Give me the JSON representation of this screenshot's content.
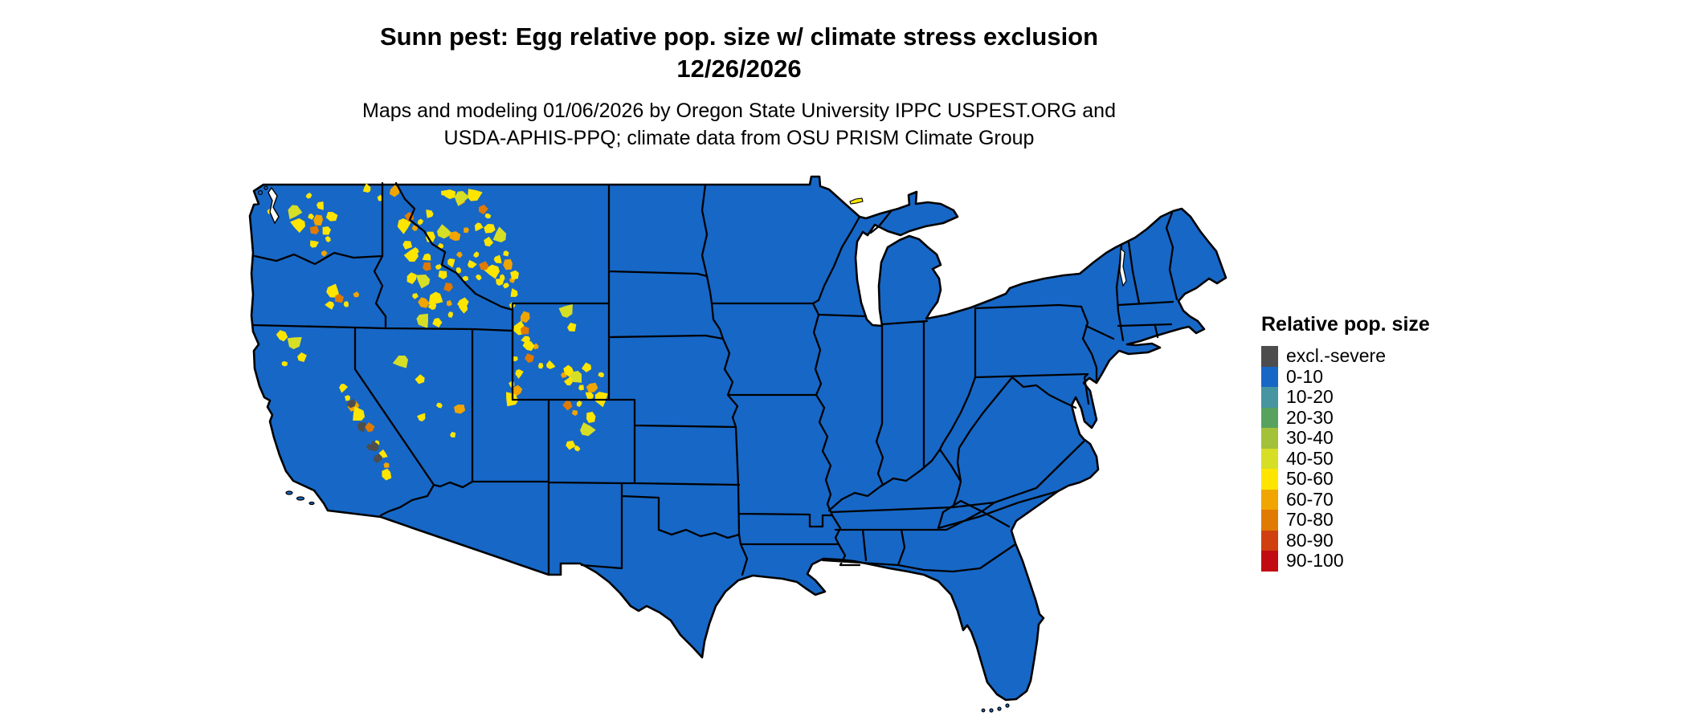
{
  "title": {
    "line1": "Sunn pest: Egg relative pop. size w/ climate stress exclusion",
    "line2": "12/26/2026"
  },
  "subtitle": {
    "line1": "Maps and modeling 01/06/2026 by Oregon State University IPPC USPEST.ORG and",
    "line2": "USDA-APHIS-PPQ; climate data from OSU PRISM Climate Group"
  },
  "legend": {
    "title": "Relative pop. size",
    "items": [
      {
        "label": "excl.-severe",
        "color": "#4d4d4d"
      },
      {
        "label": "0-10",
        "color": "#1767c6"
      },
      {
        "label": "10-20",
        "color": "#4695a0"
      },
      {
        "label": "20-30",
        "color": "#57a25f"
      },
      {
        "label": "30-40",
        "color": "#a3c139"
      },
      {
        "label": "40-50",
        "color": "#d6de26"
      },
      {
        "label": "50-60",
        "color": "#fee500"
      },
      {
        "label": "60-70",
        "color": "#f0a500"
      },
      {
        "label": "70-80",
        "color": "#e07a00"
      },
      {
        "label": "80-90",
        "color": "#cf3f10"
      },
      {
        "label": "90-100",
        "color": "#c10a12"
      }
    ]
  },
  "map": {
    "region": "Continental United States",
    "dominant_class": "0-10",
    "land_fill": "#1767c6",
    "border_color": "#000000",
    "background": "#ffffff",
    "exclusion_speckle_colors": [
      "#fee500",
      "#f0a500",
      "#e07a00",
      "#d6de26"
    ],
    "severe_exclusion_color": "#4d4d4d"
  }
}
